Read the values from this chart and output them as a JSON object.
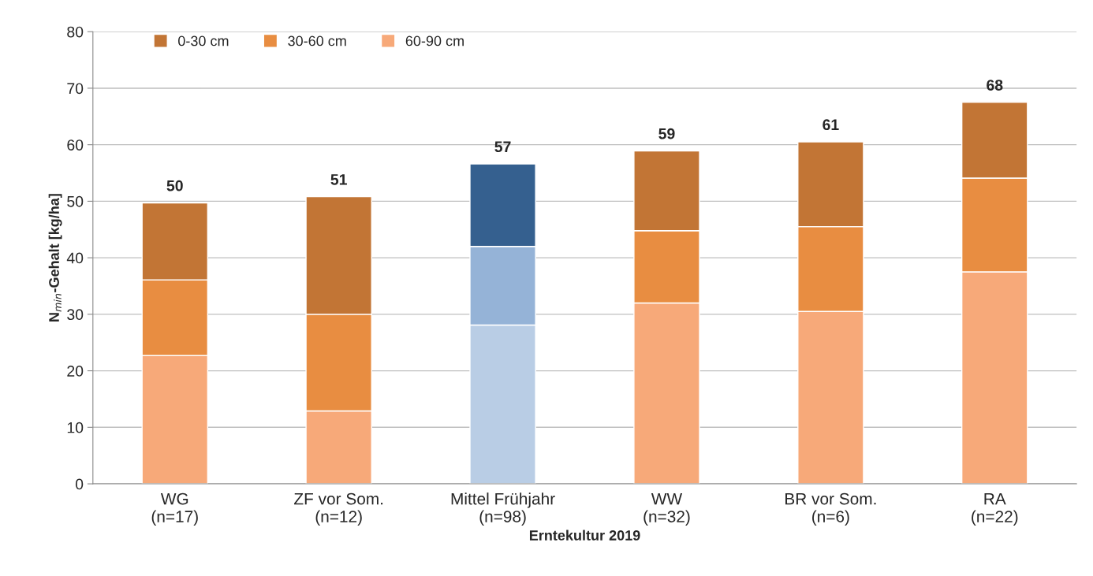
{
  "chart_data": {
    "type": "bar",
    "stacked": true,
    "categories": [
      "WG\n(n=17)",
      "ZF vor Som.\n(n=12)",
      "Mittel Frühjahr\n(n=98)",
      "WW\n(n=32)",
      "BR vor Som.\n(n=6)",
      "RA\n(n=22)"
    ],
    "series": [
      {
        "name": "60-90 cm",
        "color": "#f7a979",
        "colors": [
          "#f7a979",
          "#f7a979",
          "#b9cde5",
          "#f7a979",
          "#f7a979",
          "#f7a979"
        ],
        "values": [
          22.7,
          12.9,
          28.1,
          32.0,
          30.5,
          37.5
        ]
      },
      {
        "name": "30-60 cm",
        "color": "#e88d41",
        "colors": [
          "#e88d41",
          "#e88d41",
          "#95b3d7",
          "#e88d41",
          "#e88d41",
          "#e88d41"
        ],
        "values": [
          13.4,
          17.1,
          13.9,
          12.8,
          15.0,
          16.6
        ]
      },
      {
        "name": "0-30 cm",
        "color": "#c27535",
        "colors": [
          "#c27535",
          "#c27535",
          "#35608f",
          "#c27535",
          "#c27535",
          "#c27535"
        ],
        "values": [
          13.6,
          20.8,
          14.6,
          14.1,
          15.0,
          13.4
        ]
      }
    ],
    "totals": [
      "50",
      "51",
      "57",
      "59",
      "61",
      "68"
    ],
    "xlabel": "Erntekultur 2019",
    "ylabel": "N$_{min}$-Gehalt [kg/ha]",
    "ylim": [
      0,
      80
    ],
    "yticks": [
      0,
      10,
      20,
      30,
      40,
      50,
      60,
      70,
      80
    ],
    "grid": "y",
    "legend": "top left"
  }
}
